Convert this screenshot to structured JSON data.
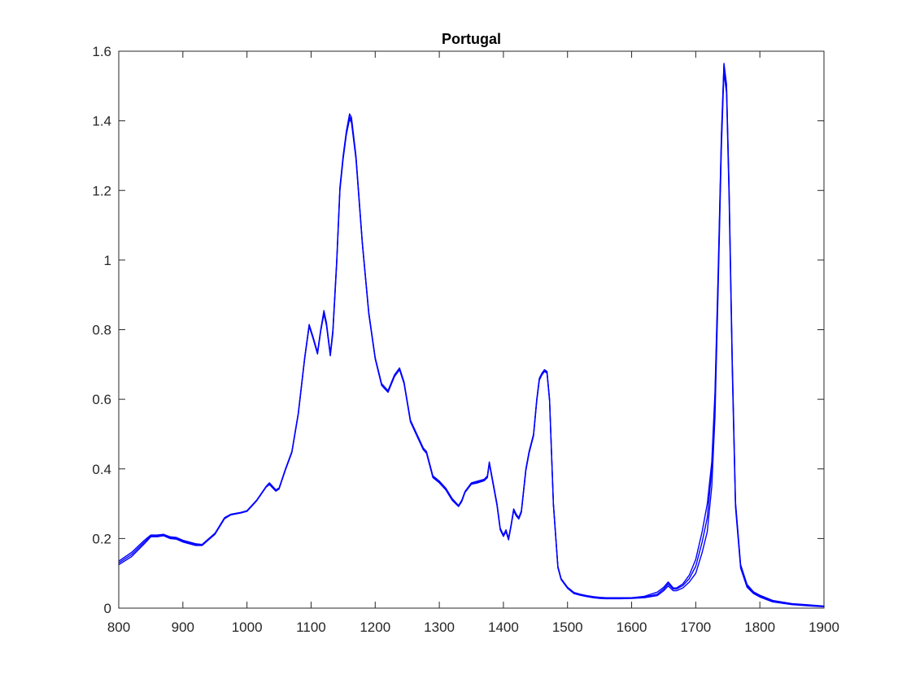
{
  "chart_data": {
    "type": "line",
    "title": "Portugal",
    "xlabel": "",
    "ylabel": "",
    "xlim": [
      800,
      1900
    ],
    "ylim": [
      0,
      1.6
    ],
    "xticks": [
      800,
      900,
      1000,
      1100,
      1200,
      1300,
      1400,
      1500,
      1600,
      1700,
      1800,
      1900
    ],
    "yticks": [
      0,
      0.2,
      0.4,
      0.6,
      0.8,
      1,
      1.2,
      1.4,
      1.6
    ],
    "xtick_labels": [
      "800",
      "900",
      "1000",
      "1100",
      "1200",
      "1300",
      "1400",
      "1500",
      "1600",
      "1700",
      "1800",
      "1900"
    ],
    "ytick_labels": [
      "0",
      "0.2",
      "0.4",
      "0.6",
      "0.8",
      "1",
      "1.2",
      "1.4",
      "1.6"
    ],
    "grid": false,
    "box": true,
    "line_color": "#0000ff",
    "series": [
      {
        "x": [
          800,
          820,
          840,
          850,
          860,
          870,
          880,
          890,
          900,
          920,
          930,
          950,
          965,
          975,
          990,
          1000,
          1015,
          1030,
          1035,
          1045,
          1050,
          1060,
          1070,
          1080,
          1090,
          1097,
          1103,
          1110,
          1115,
          1120,
          1124,
          1130,
          1134,
          1140,
          1145,
          1150,
          1155,
          1160,
          1163,
          1170,
          1180,
          1190,
          1200,
          1210,
          1220,
          1230,
          1238,
          1245,
          1255,
          1265,
          1275,
          1280,
          1290,
          1300,
          1310,
          1320,
          1330,
          1335,
          1340,
          1350,
          1360,
          1370,
          1375,
          1378,
          1382,
          1390,
          1395,
          1400,
          1404,
          1408,
          1412,
          1416,
          1420,
          1424,
          1428,
          1435,
          1440,
          1447,
          1452,
          1456,
          1460,
          1464,
          1468,
          1472,
          1478,
          1485,
          1490,
          1500,
          1510,
          1520,
          1530,
          1540,
          1550,
          1560,
          1570,
          1580,
          1600,
          1620,
          1640,
          1650,
          1657,
          1665,
          1670,
          1680,
          1690,
          1700,
          1710,
          1718,
          1725,
          1730,
          1735,
          1740,
          1744,
          1748,
          1752,
          1757,
          1762,
          1770,
          1780,
          1790,
          1800,
          1820,
          1850,
          1880,
          1900
        ],
        "values": [
          0.135,
          0.16,
          0.195,
          0.21,
          0.21,
          0.212,
          0.205,
          0.203,
          0.195,
          0.185,
          0.183,
          0.215,
          0.26,
          0.27,
          0.275,
          0.28,
          0.31,
          0.35,
          0.36,
          0.34,
          0.345,
          0.4,
          0.45,
          0.56,
          0.72,
          0.815,
          0.78,
          0.735,
          0.8,
          0.855,
          0.82,
          0.73,
          0.8,
          1.0,
          1.21,
          1.3,
          1.37,
          1.42,
          1.41,
          1.3,
          1.05,
          0.85,
          0.72,
          0.645,
          0.625,
          0.67,
          0.69,
          0.65,
          0.54,
          0.5,
          0.46,
          0.45,
          0.38,
          0.365,
          0.345,
          0.315,
          0.295,
          0.31,
          0.335,
          0.36,
          0.365,
          0.37,
          0.38,
          0.42,
          0.38,
          0.3,
          0.23,
          0.21,
          0.225,
          0.2,
          0.24,
          0.285,
          0.27,
          0.26,
          0.28,
          0.4,
          0.45,
          0.5,
          0.6,
          0.66,
          0.675,
          0.685,
          0.68,
          0.6,
          0.3,
          0.12,
          0.085,
          0.06,
          0.045,
          0.04,
          0.036,
          0.033,
          0.031,
          0.03,
          0.03,
          0.03,
          0.03,
          0.032,
          0.04,
          0.055,
          0.07,
          0.055,
          0.055,
          0.065,
          0.085,
          0.12,
          0.19,
          0.26,
          0.4,
          0.6,
          0.95,
          1.35,
          1.56,
          1.5,
          1.2,
          0.7,
          0.3,
          0.12,
          0.065,
          0.045,
          0.035,
          0.02,
          0.012,
          0.008,
          0.005
        ]
      },
      {
        "x": [
          800,
          820,
          840,
          850,
          860,
          870,
          880,
          890,
          900,
          920,
          930,
          950,
          965,
          975,
          990,
          1000,
          1015,
          1030,
          1035,
          1045,
          1050,
          1060,
          1070,
          1080,
          1090,
          1097,
          1103,
          1110,
          1115,
          1120,
          1124,
          1130,
          1134,
          1140,
          1145,
          1150,
          1155,
          1160,
          1163,
          1170,
          1180,
          1190,
          1200,
          1210,
          1220,
          1230,
          1238,
          1245,
          1255,
          1265,
          1275,
          1280,
          1290,
          1300,
          1310,
          1320,
          1330,
          1335,
          1340,
          1350,
          1360,
          1370,
          1375,
          1378,
          1382,
          1390,
          1395,
          1400,
          1404,
          1408,
          1412,
          1416,
          1420,
          1424,
          1428,
          1435,
          1440,
          1447,
          1452,
          1456,
          1460,
          1464,
          1468,
          1472,
          1478,
          1485,
          1490,
          1500,
          1510,
          1520,
          1530,
          1540,
          1550,
          1560,
          1570,
          1580,
          1600,
          1620,
          1640,
          1650,
          1657,
          1665,
          1670,
          1680,
          1690,
          1700,
          1710,
          1718,
          1725,
          1730,
          1735,
          1740,
          1744,
          1748,
          1752,
          1757,
          1762,
          1770,
          1780,
          1790,
          1800,
          1820,
          1850,
          1880,
          1900
        ],
        "values": [
          0.125,
          0.148,
          0.185,
          0.205,
          0.205,
          0.208,
          0.2,
          0.198,
          0.19,
          0.18,
          0.18,
          0.212,
          0.257,
          0.268,
          0.273,
          0.278,
          0.308,
          0.348,
          0.355,
          0.336,
          0.342,
          0.397,
          0.447,
          0.557,
          0.716,
          0.81,
          0.775,
          0.73,
          0.795,
          0.845,
          0.812,
          0.725,
          0.79,
          0.99,
          1.2,
          1.29,
          1.36,
          1.405,
          1.395,
          1.29,
          1.045,
          0.845,
          0.716,
          0.64,
          0.62,
          0.665,
          0.685,
          0.645,
          0.535,
          0.495,
          0.455,
          0.445,
          0.375,
          0.36,
          0.34,
          0.31,
          0.292,
          0.306,
          0.332,
          0.356,
          0.36,
          0.366,
          0.375,
          0.415,
          0.375,
          0.295,
          0.225,
          0.206,
          0.22,
          0.196,
          0.236,
          0.28,
          0.265,
          0.256,
          0.275,
          0.395,
          0.445,
          0.495,
          0.595,
          0.655,
          0.67,
          0.68,
          0.675,
          0.595,
          0.295,
          0.116,
          0.082,
          0.057,
          0.042,
          0.037,
          0.033,
          0.03,
          0.028,
          0.027,
          0.027,
          0.027,
          0.028,
          0.03,
          0.036,
          0.05,
          0.064,
          0.05,
          0.05,
          0.058,
          0.075,
          0.1,
          0.16,
          0.22,
          0.35,
          0.55,
          0.92,
          1.32,
          1.54,
          1.48,
          1.18,
          0.68,
          0.29,
          0.115,
          0.06,
          0.042,
          0.032,
          0.018,
          0.01,
          0.006,
          0.004
        ]
      },
      {
        "x": [
          800,
          820,
          840,
          850,
          860,
          870,
          880,
          890,
          900,
          920,
          930,
          950,
          965,
          975,
          990,
          1000,
          1015,
          1030,
          1035,
          1045,
          1050,
          1060,
          1070,
          1080,
          1090,
          1097,
          1103,
          1110,
          1115,
          1120,
          1124,
          1130,
          1134,
          1140,
          1145,
          1150,
          1155,
          1160,
          1163,
          1170,
          1180,
          1190,
          1200,
          1210,
          1220,
          1230,
          1238,
          1245,
          1255,
          1265,
          1275,
          1280,
          1290,
          1300,
          1310,
          1320,
          1330,
          1335,
          1340,
          1350,
          1360,
          1370,
          1375,
          1378,
          1382,
          1390,
          1395,
          1400,
          1404,
          1408,
          1412,
          1416,
          1420,
          1424,
          1428,
          1435,
          1440,
          1447,
          1452,
          1456,
          1460,
          1464,
          1468,
          1472,
          1478,
          1485,
          1490,
          1500,
          1510,
          1520,
          1530,
          1540,
          1550,
          1560,
          1570,
          1580,
          1600,
          1620,
          1640,
          1650,
          1657,
          1665,
          1670,
          1680,
          1690,
          1700,
          1710,
          1718,
          1725,
          1730,
          1735,
          1740,
          1744,
          1748,
          1752,
          1757,
          1762,
          1770,
          1780,
          1790,
          1800,
          1820,
          1850,
          1880,
          1900
        ],
        "values": [
          0.13,
          0.154,
          0.19,
          0.207,
          0.207,
          0.21,
          0.202,
          0.2,
          0.192,
          0.182,
          0.181,
          0.213,
          0.258,
          0.269,
          0.274,
          0.279,
          0.309,
          0.349,
          0.357,
          0.338,
          0.343,
          0.398,
          0.448,
          0.558,
          0.718,
          0.812,
          0.777,
          0.732,
          0.797,
          0.85,
          0.815,
          0.727,
          0.795,
          0.995,
          1.205,
          1.295,
          1.365,
          1.412,
          1.402,
          1.295,
          1.047,
          0.847,
          0.718,
          0.642,
          0.622,
          0.667,
          0.687,
          0.647,
          0.537,
          0.497,
          0.457,
          0.447,
          0.377,
          0.362,
          0.342,
          0.312,
          0.293,
          0.308,
          0.333,
          0.358,
          0.362,
          0.368,
          0.377,
          0.418,
          0.377,
          0.297,
          0.227,
          0.208,
          0.222,
          0.198,
          0.238,
          0.282,
          0.267,
          0.258,
          0.277,
          0.397,
          0.447,
          0.497,
          0.597,
          0.657,
          0.672,
          0.682,
          0.677,
          0.597,
          0.297,
          0.118,
          0.083,
          0.058,
          0.043,
          0.038,
          0.034,
          0.031,
          0.029,
          0.028,
          0.028,
          0.028,
          0.03,
          0.034,
          0.046,
          0.06,
          0.075,
          0.058,
          0.058,
          0.07,
          0.095,
          0.14,
          0.22,
          0.3,
          0.42,
          0.62,
          0.97,
          1.36,
          1.565,
          1.505,
          1.21,
          0.71,
          0.305,
          0.125,
          0.068,
          0.047,
          0.037,
          0.022,
          0.013,
          0.009,
          0.006
        ]
      }
    ]
  }
}
